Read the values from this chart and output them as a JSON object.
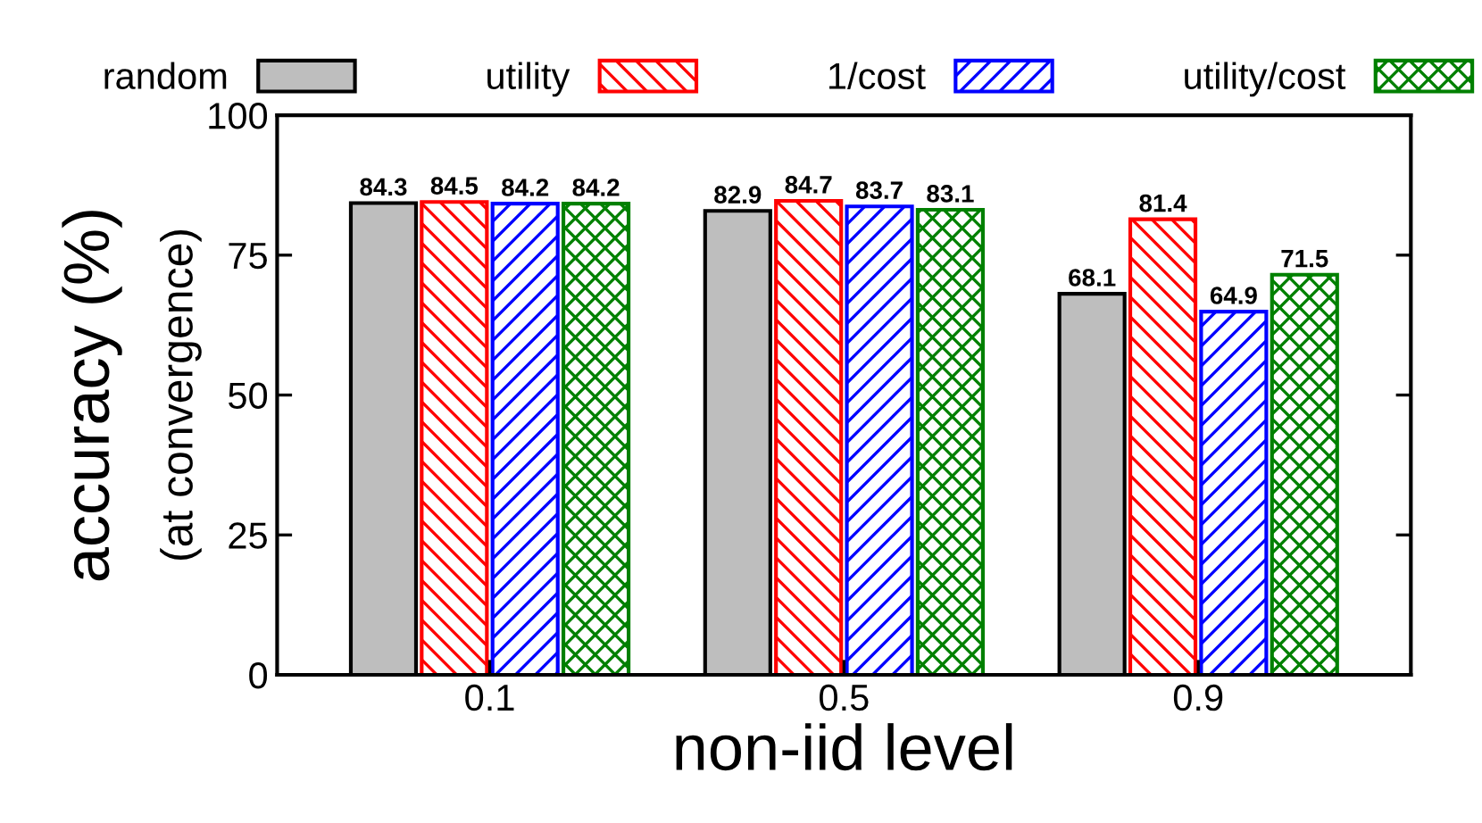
{
  "chart_data": {
    "type": "bar",
    "xlabel": "non-iid level",
    "ylabel": "accuracy (%)",
    "annotations": [
      "(at convergence)"
    ],
    "categories": [
      "0.1",
      "0.5",
      "0.9"
    ],
    "series": [
      {
        "name": "random",
        "color": "#bebebe",
        "values": [
          84.3,
          82.9,
          68.1
        ]
      },
      {
        "name": "utility",
        "color": "#ff0000",
        "values": [
          84.5,
          84.7,
          81.4
        ]
      },
      {
        "name": "1/cost",
        "color": "#0000ff",
        "values": [
          84.2,
          83.7,
          64.9
        ]
      },
      {
        "name": "utility/cost",
        "color": "#008000",
        "values": [
          84.2,
          83.1,
          71.5
        ]
      }
    ],
    "ylim": [
      0,
      100
    ],
    "yticks": [
      0,
      25,
      50,
      75,
      100
    ],
    "grid": false,
    "legend": "top",
    "data_labels": true
  }
}
